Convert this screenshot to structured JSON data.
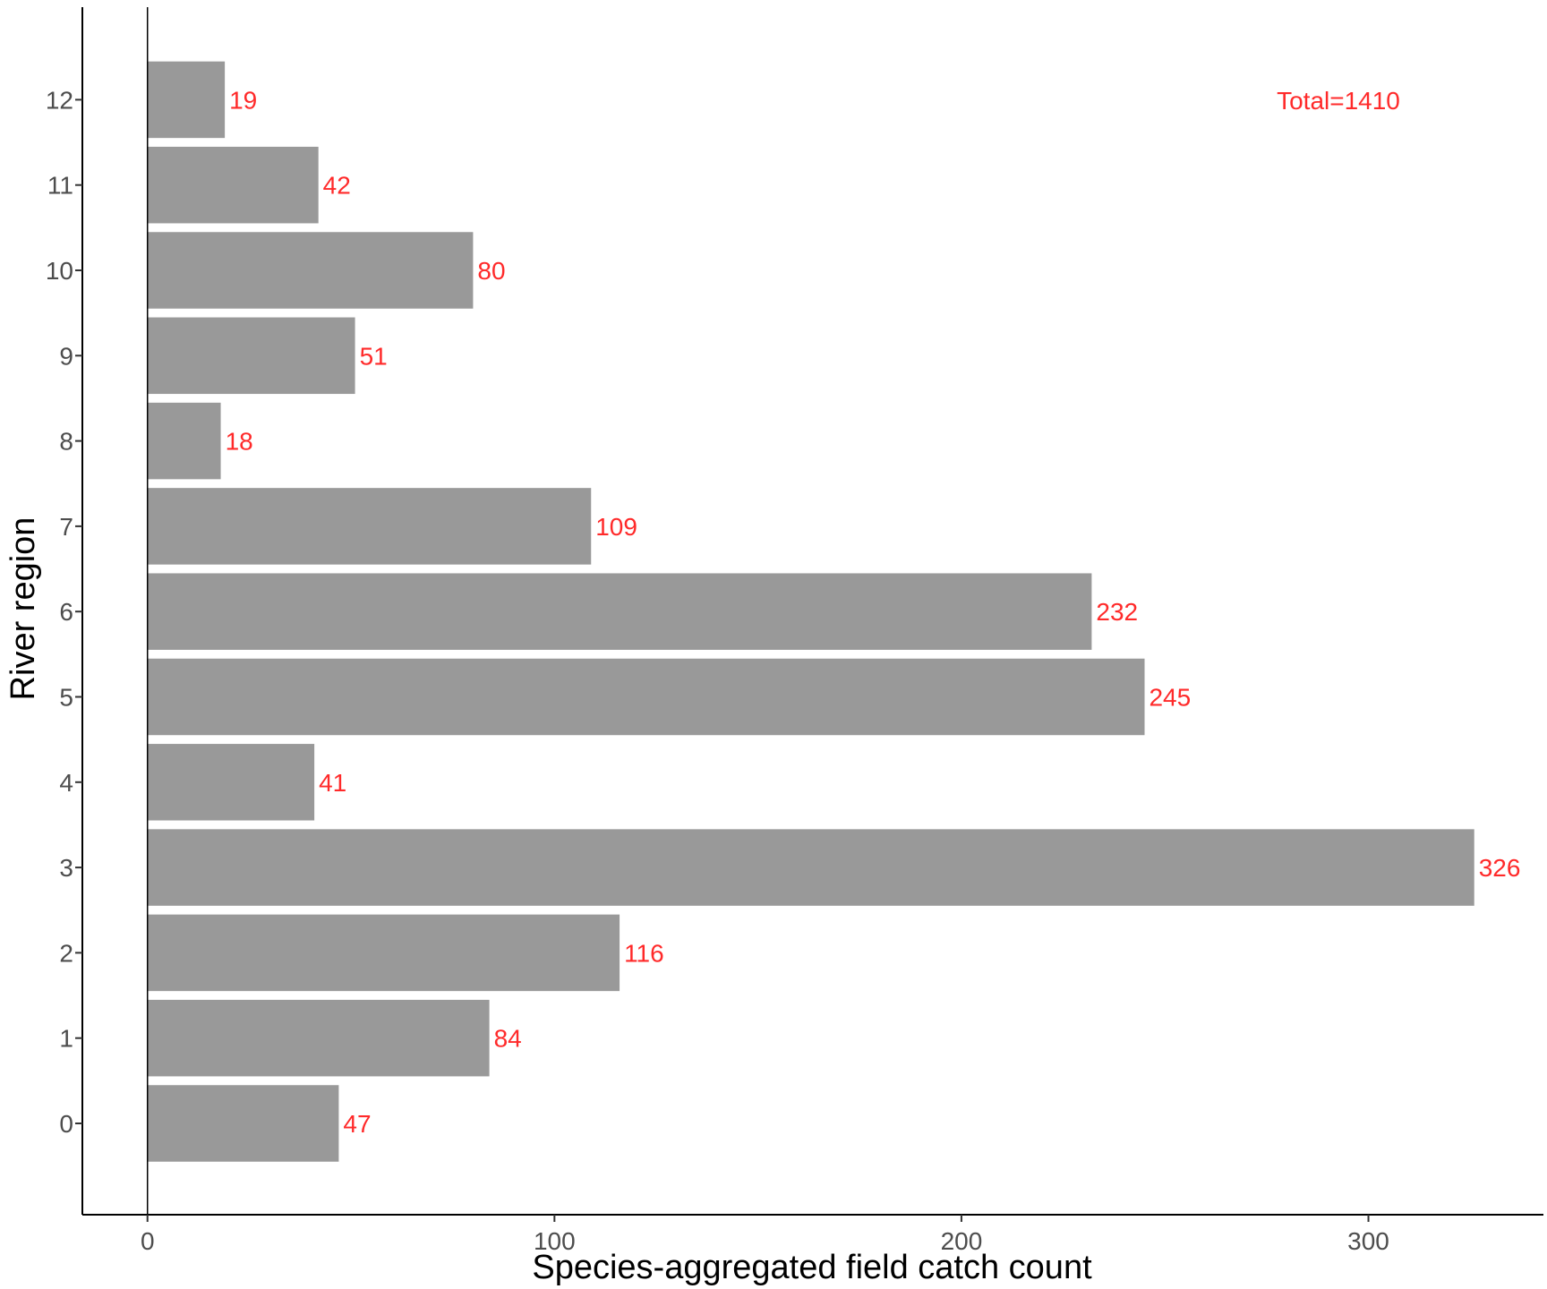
{
  "chart_data": {
    "type": "bar",
    "orientation": "horizontal",
    "categories": [
      "0",
      "1",
      "2",
      "3",
      "4",
      "5",
      "6",
      "7",
      "8",
      "9",
      "10",
      "11",
      "12"
    ],
    "values": [
      47,
      84,
      116,
      326,
      41,
      245,
      232,
      109,
      18,
      51,
      80,
      42,
      19
    ],
    "data_labels": [
      "47",
      "84",
      "116",
      "326",
      "41",
      "245",
      "232",
      "109",
      "18",
      "51",
      "80",
      "42",
      "19"
    ],
    "xlabel": "Species-aggregated field catch count",
    "ylabel": "River region",
    "xlim": [
      -16,
      343
    ],
    "x_ticks": [
      0,
      100,
      200,
      300
    ],
    "x_tick_labels": [
      "0",
      "100",
      "200",
      "300"
    ],
    "annotation": "Total=1410",
    "annotation_position": "top-right",
    "grid": false,
    "legend": "none",
    "colors": {
      "bar": "#999999",
      "label": "#ff2a2a",
      "axis": "#000000",
      "tick_text": "#4d4d4d"
    }
  }
}
